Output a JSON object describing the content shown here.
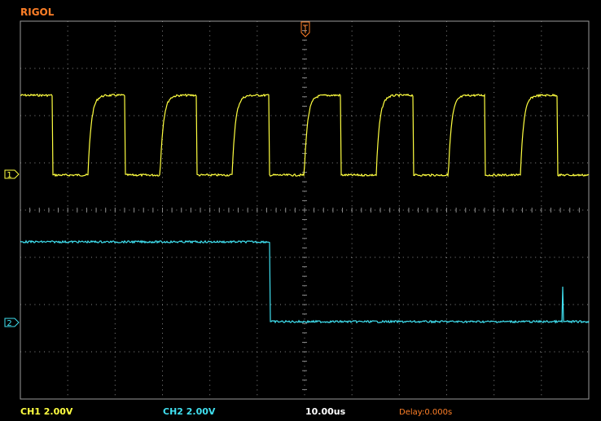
{
  "header": {
    "brand": "RIGOL"
  },
  "channels": [
    {
      "marker": "1",
      "scale_label": "CH1 2.00V"
    },
    {
      "marker": "2",
      "scale_label": "CH2 2.00V"
    }
  ],
  "timebase": "10.00us",
  "delay": "Delay:0.000s"
}
